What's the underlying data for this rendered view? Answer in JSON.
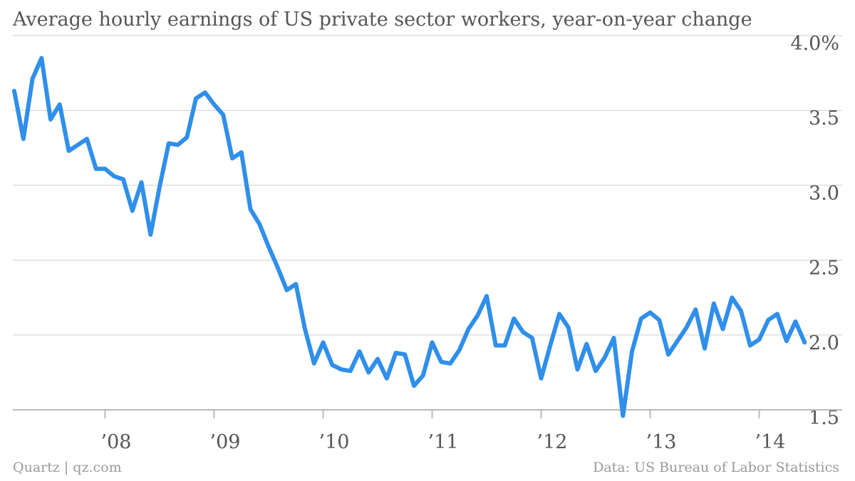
{
  "chart_data": {
    "type": "line",
    "title": "Average hourly earnings of US private sector workers, year-on-year change",
    "xlabel": "",
    "ylabel": "",
    "ylim": [
      1.5,
      4.0
    ],
    "y_ticks": [
      {
        "value": 4.0,
        "label": "4.0%"
      },
      {
        "value": 3.5,
        "label": "3.5"
      },
      {
        "value": 3.0,
        "label": "3.0"
      },
      {
        "value": 2.5,
        "label": "2.5"
      },
      {
        "value": 2.0,
        "label": "2.0"
      },
      {
        "value": 1.5,
        "label": "1.5"
      }
    ],
    "x_ticks": [
      {
        "value": "2008-01",
        "label": "’08"
      },
      {
        "value": "2009-01",
        "label": "’09"
      },
      {
        "value": "2010-01",
        "label": "’10"
      },
      {
        "value": "2011-01",
        "label": "’11"
      },
      {
        "value": "2012-01",
        "label": "’12"
      },
      {
        "value": "2013-01",
        "label": "’13"
      },
      {
        "value": "2014-01",
        "label": "’14"
      }
    ],
    "grid": true,
    "legend": "none",
    "color": "#2f8fea",
    "x": [
      "2007-03",
      "2007-04",
      "2007-05",
      "2007-06",
      "2007-07",
      "2007-08",
      "2007-09",
      "2007-10",
      "2007-11",
      "2007-12",
      "2008-01",
      "2008-02",
      "2008-03",
      "2008-04",
      "2008-05",
      "2008-06",
      "2008-07",
      "2008-08",
      "2008-09",
      "2008-10",
      "2008-11",
      "2008-12",
      "2009-01",
      "2009-02",
      "2009-03",
      "2009-04",
      "2009-05",
      "2009-06",
      "2009-07",
      "2009-08",
      "2009-09",
      "2009-10",
      "2009-11",
      "2009-12",
      "2010-01",
      "2010-02",
      "2010-03",
      "2010-04",
      "2010-05",
      "2010-06",
      "2010-07",
      "2010-08",
      "2010-09",
      "2010-10",
      "2010-11",
      "2010-12",
      "2011-01",
      "2011-02",
      "2011-03",
      "2011-04",
      "2011-05",
      "2011-06",
      "2011-07",
      "2011-08",
      "2011-09",
      "2011-10",
      "2011-11",
      "2011-12",
      "2012-01",
      "2012-02",
      "2012-03",
      "2012-04",
      "2012-05",
      "2012-06",
      "2012-07",
      "2012-08",
      "2012-09",
      "2012-10",
      "2012-11",
      "2012-12",
      "2013-01",
      "2013-02",
      "2013-03",
      "2013-04",
      "2013-05",
      "2013-06",
      "2013-07",
      "2013-08",
      "2013-09",
      "2013-10",
      "2013-11",
      "2013-12",
      "2014-01",
      "2014-02",
      "2014-03",
      "2014-04",
      "2014-05",
      "2014-06"
    ],
    "y": [
      3.63,
      3.31,
      3.71,
      3.85,
      3.44,
      3.54,
      3.23,
      3.27,
      3.31,
      3.11,
      3.11,
      3.06,
      3.04,
      2.83,
      3.02,
      2.67,
      2.99,
      3.28,
      3.27,
      3.32,
      3.58,
      3.62,
      3.54,
      3.47,
      3.18,
      3.22,
      2.84,
      2.74,
      2.59,
      2.45,
      2.3,
      2.34,
      2.04,
      1.81,
      1.95,
      1.8,
      1.77,
      1.76,
      1.89,
      1.75,
      1.84,
      1.71,
      1.88,
      1.87,
      1.66,
      1.73,
      1.95,
      1.82,
      1.81,
      1.9,
      2.04,
      2.13,
      2.26,
      1.93,
      1.93,
      2.11,
      2.02,
      1.98,
      1.71,
      1.93,
      2.14,
      2.05,
      1.77,
      1.94,
      1.76,
      1.85,
      1.98,
      1.46,
      1.89,
      2.11,
      2.15,
      2.1,
      1.87,
      1.96,
      2.05,
      2.17,
      1.91,
      2.21,
      2.04,
      2.25,
      2.16,
      1.93,
      1.97,
      2.1,
      2.14,
      1.96,
      2.09,
      1.95
    ]
  },
  "source_left": "Quartz | qz.com",
  "source_right": "Data: US Bureau of Labor Statistics"
}
